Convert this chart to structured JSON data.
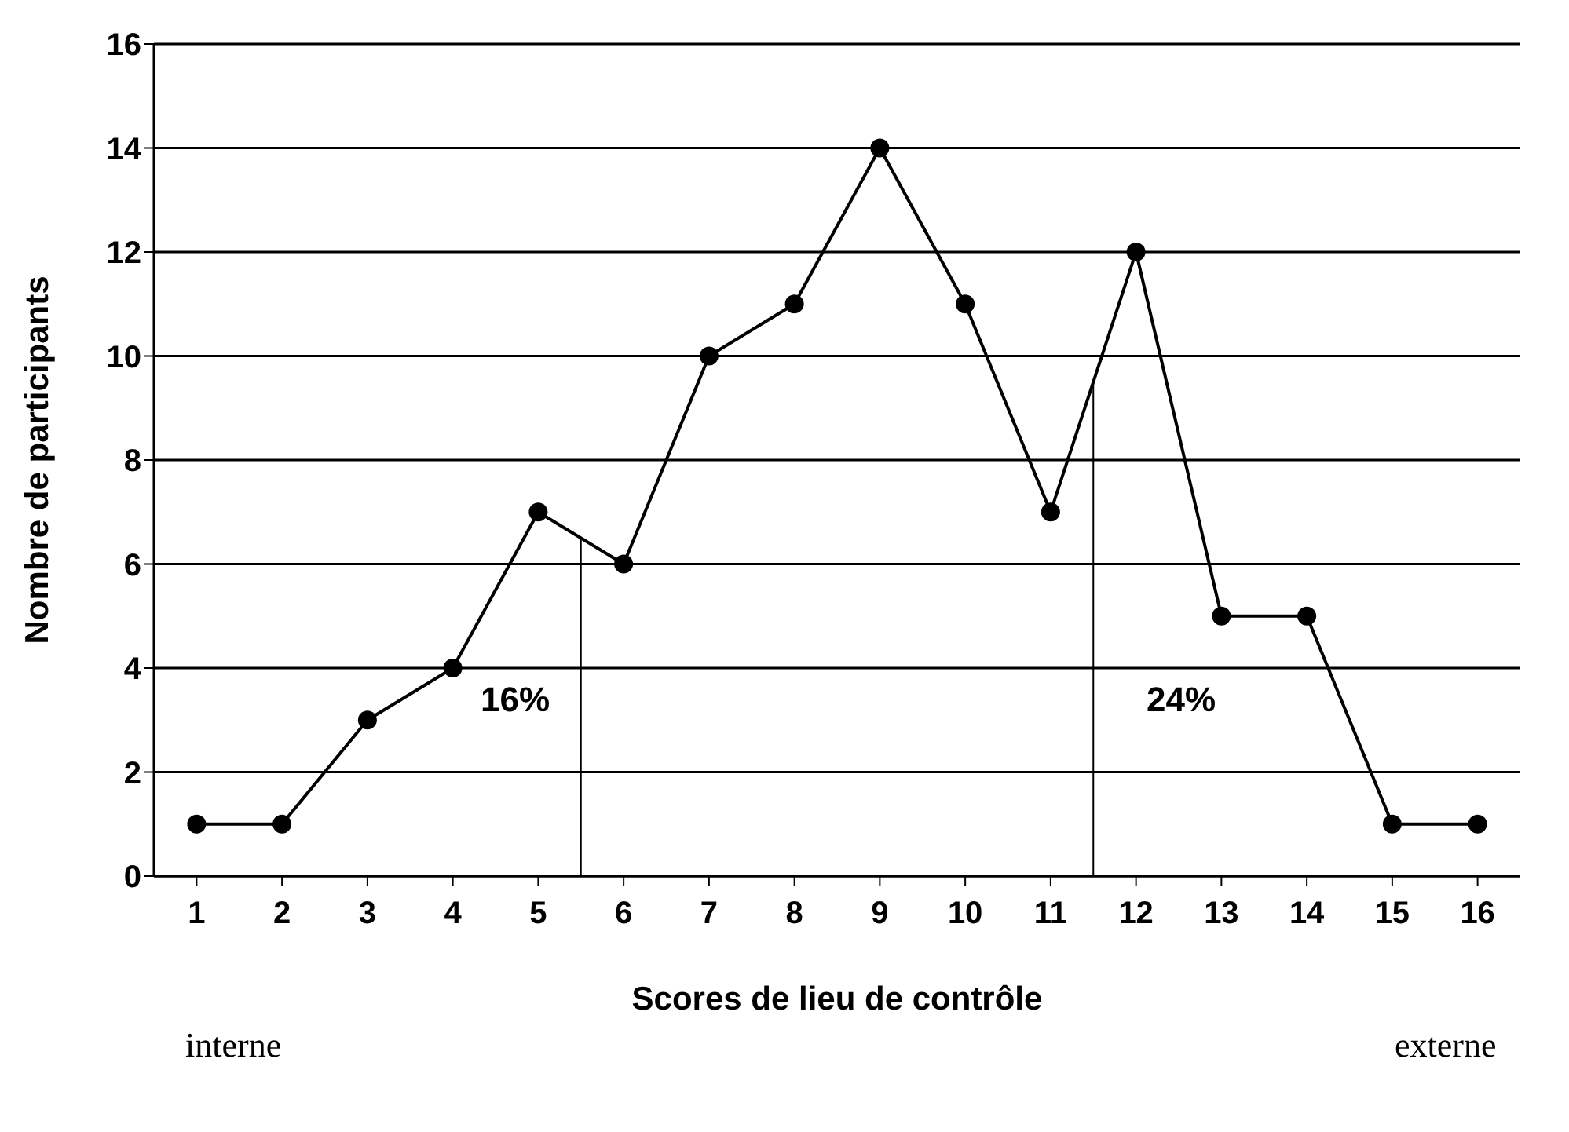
{
  "chart_data": {
    "type": "line",
    "xlabel": "Scores de lieu de contrôle",
    "ylabel": "Nombre de participants",
    "x": [
      1,
      2,
      3,
      4,
      5,
      6,
      7,
      8,
      9,
      10,
      11,
      12,
      13,
      14,
      15,
      16
    ],
    "series": [
      {
        "color": "#000000",
        "values": [
          1,
          1,
          3,
          4,
          7,
          6,
          10,
          11,
          14,
          11,
          7,
          12,
          5,
          5,
          1,
          1
        ]
      }
    ],
    "xlim": [
      0.5,
      16.5
    ],
    "xticks": [
      1,
      2,
      3,
      4,
      5,
      6,
      7,
      8,
      9,
      10,
      11,
      12,
      13,
      14,
      15,
      16
    ],
    "ylim": [
      0,
      16
    ],
    "yticks": [
      0,
      2,
      4,
      6,
      8,
      10,
      12,
      14,
      16
    ],
    "grid": "y",
    "marker": "circle",
    "line_style": "solid",
    "ref_lines": [
      {
        "axis": "x",
        "value": 5.5,
        "color": "#000000"
      },
      {
        "axis": "x",
        "value": 11.5,
        "color": "#000000"
      }
    ],
    "annotations": [
      "16%",
      "24%",
      "interne",
      "externe"
    ]
  }
}
